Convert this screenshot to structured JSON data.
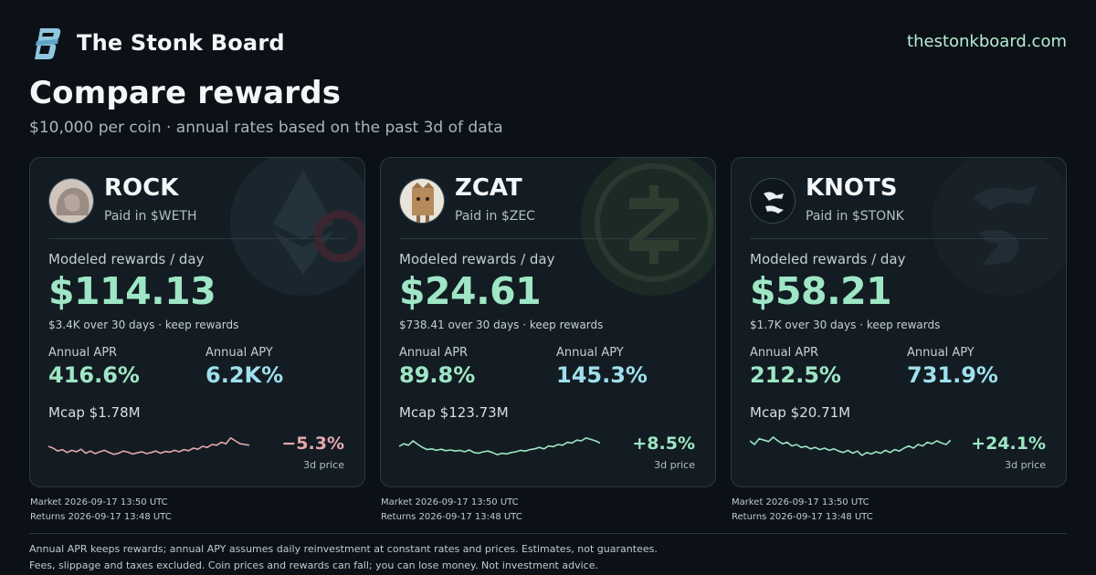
{
  "brand": {
    "name": "The Stonk Board",
    "logo_icon": "stonk-s-logo-icon",
    "url": "thestonkboard.com"
  },
  "headline": "Compare rewards",
  "subhead": "$10,000 per coin · annual rates based on the past 3d of data",
  "colors": {
    "positive": "#9ee6c5",
    "negative": "#e8a7ae",
    "apy": "#9ee0ec",
    "background": "#0b1116",
    "card": "#121c22"
  },
  "cards": [
    {
      "name": "ROCK",
      "paid_in": "Paid in $WETH",
      "avatar_icon": "rock-avatar-icon",
      "watermark_icon": "ethereum-icon",
      "reward_label": "Modeled rewards / day",
      "reward_value": "$114.13",
      "reward_note": "$3.4K over 30 days · keep rewards",
      "apr_label": "Annual APR",
      "apr_value": "416.6%",
      "apy_label": "Annual APY",
      "apy_value": "6.2K%",
      "mcap": "Mcap $1.78M",
      "change": "−5.3%",
      "change_label": "3d price",
      "direction": "down",
      "spark": [
        0.55,
        0.5,
        0.42,
        0.46,
        0.38,
        0.44,
        0.4,
        0.47,
        0.36,
        0.42,
        0.35,
        0.4,
        0.44,
        0.38,
        0.33,
        0.36,
        0.42,
        0.39,
        0.34,
        0.37,
        0.4,
        0.35,
        0.38,
        0.42,
        0.36,
        0.41,
        0.39,
        0.44,
        0.4,
        0.46,
        0.43,
        0.5,
        0.47,
        0.55,
        0.52,
        0.6,
        0.58,
        0.66,
        0.62,
        0.78,
        0.7,
        0.62,
        0.6,
        0.58
      ]
    },
    {
      "name": "ZCAT",
      "paid_in": "Paid in $ZEC",
      "avatar_icon": "cat-avatar-icon",
      "watermark_icon": "zcash-icon",
      "reward_label": "Modeled rewards / day",
      "reward_value": "$24.61",
      "reward_note": "$738.41 over 30 days · keep rewards",
      "apr_label": "Annual APR",
      "apr_value": "89.8%",
      "apy_label": "Annual APY",
      "apy_value": "145.3%",
      "mcap": "Mcap $123.73M",
      "change": "+8.5%",
      "change_label": "3d price",
      "direction": "up",
      "spark": [
        0.55,
        0.62,
        0.58,
        0.7,
        0.6,
        0.52,
        0.46,
        0.48,
        0.44,
        0.47,
        0.43,
        0.45,
        0.42,
        0.44,
        0.4,
        0.45,
        0.38,
        0.36,
        0.4,
        0.42,
        0.38,
        0.32,
        0.36,
        0.34,
        0.38,
        0.4,
        0.44,
        0.42,
        0.46,
        0.48,
        0.52,
        0.48,
        0.56,
        0.54,
        0.6,
        0.58,
        0.66,
        0.64,
        0.72,
        0.7,
        0.78,
        0.74,
        0.7,
        0.64
      ]
    },
    {
      "name": "KNOTS",
      "paid_in": "Paid in $STONK",
      "avatar_icon": "knots-avatar-icon",
      "watermark_icon": "stonk-watermark-icon",
      "reward_label": "Modeled rewards / day",
      "reward_value": "$58.21",
      "reward_note": "$1.7K over 30 days · keep rewards",
      "apr_label": "Annual APR",
      "apr_value": "212.5%",
      "apy_label": "Annual APY",
      "apy_value": "731.9%",
      "mcap": "Mcap $20.71M",
      "change": "+24.1%",
      "change_label": "3d price",
      "direction": "up",
      "spark": [
        0.7,
        0.6,
        0.76,
        0.72,
        0.68,
        0.8,
        0.7,
        0.62,
        0.66,
        0.56,
        0.6,
        0.52,
        0.55,
        0.48,
        0.52,
        0.46,
        0.5,
        0.44,
        0.48,
        0.42,
        0.38,
        0.44,
        0.36,
        0.42,
        0.3,
        0.38,
        0.34,
        0.4,
        0.36,
        0.44,
        0.38,
        0.46,
        0.42,
        0.5,
        0.56,
        0.5,
        0.6,
        0.56,
        0.66,
        0.62,
        0.7,
        0.64,
        0.6,
        0.72
      ]
    }
  ],
  "timestamps": [
    {
      "market": "Market 2026-09-17 13:50 UTC",
      "returns": "Returns 2026-09-17 13:48 UTC"
    },
    {
      "market": "Market 2026-09-17 13:50 UTC",
      "returns": "Returns 2026-09-17 13:48 UTC"
    },
    {
      "market": "Market 2026-09-17 13:50 UTC",
      "returns": "Returns 2026-09-17 13:48 UTC"
    }
  ],
  "disclaimer": {
    "line1": "Annual APR keeps rewards; annual APY assumes daily reinvestment at constant rates and prices. Estimates, not guarantees.",
    "line2": "Fees, slippage and taxes excluded. Coin prices and rewards can fall; you can lose money. Not investment advice."
  }
}
